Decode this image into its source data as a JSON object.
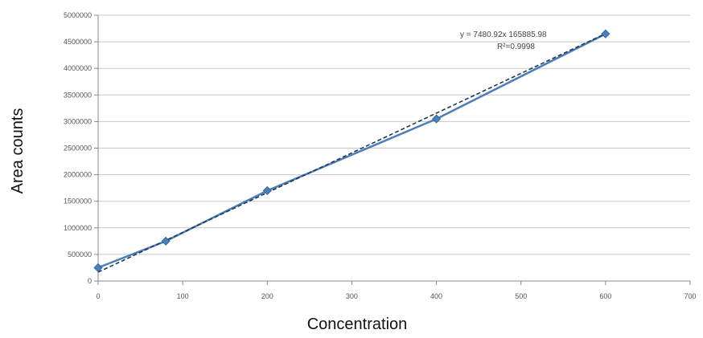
{
  "chart_data": {
    "type": "scatter",
    "xlabel": "Concentration",
    "ylabel": "Area counts",
    "xlim": [
      0,
      700
    ],
    "ylim": [
      0,
      5000000
    ],
    "x_ticks": [
      0,
      100,
      200,
      300,
      400,
      500,
      600,
      700
    ],
    "x_tick_labels": [
      "0",
      "100",
      "200",
      "300",
      "400",
      "500",
      "600",
      "700"
    ],
    "y_ticks": [
      0,
      500000,
      1000000,
      1500000,
      2000000,
      2500000,
      3000000,
      3500000,
      4000000,
      4500000,
      5000000
    ],
    "y_tick_labels": [
      "0",
      "500000",
      "1000000",
      "1500000",
      "2000000",
      "2500000",
      "3000000",
      "3500000",
      "4000000",
      "4500000",
      "5000000"
    ],
    "grid": "horizontal",
    "series": [
      {
        "x": [
          0,
          80,
          200,
          400,
          600
        ],
        "y": [
          250000,
          750000,
          1700000,
          3050000,
          4650000
        ],
        "color": "#4a7ebb"
      }
    ],
    "trendline": {
      "slope": 7480.92,
      "intercept": 165885.98,
      "color": "#1f3b57"
    },
    "annotations": {
      "equation": "y = 7480.92x  165885.98",
      "r_squared": "R²=0.9998"
    }
  }
}
